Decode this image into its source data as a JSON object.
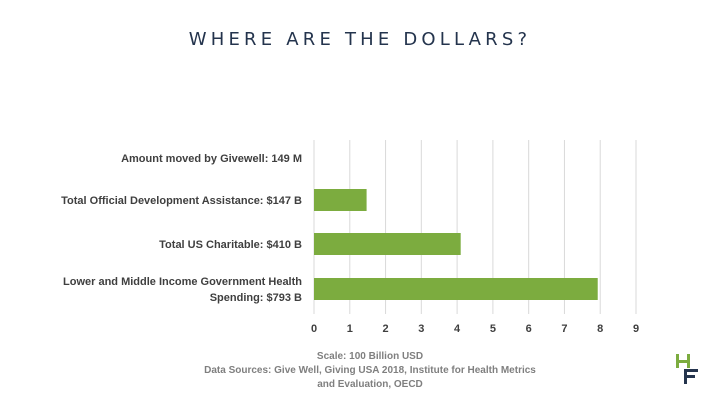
{
  "title": "WHERE ARE THE DOLLARS?",
  "chart_data": {
    "type": "bar",
    "orientation": "horizontal",
    "categories": [
      [
        "Amount moved by Givewell: 149 M"
      ],
      [
        "Total Official Development Assistance: $147 B"
      ],
      [
        "Total US Charitable: $410 B"
      ],
      [
        "Lower and Middle Income Government Health",
        "Spending: $793 B"
      ]
    ],
    "values": [
      0.00149,
      1.47,
      4.1,
      7.93
    ],
    "xlim": [
      0,
      9
    ],
    "xticks": [
      0,
      1,
      2,
      3,
      4,
      5,
      6,
      7,
      8,
      9
    ],
    "grid": "vertical",
    "bar_color": "#7cac3f",
    "grid_color": "#d9d9d9"
  },
  "footer": {
    "scale": "Scale: 100 Billion USD",
    "sources_line1": "Data Sources: Give Well, Giving USA 2018, Institute for Health Metrics",
    "sources_line2": "and Evaluation, OECD"
  },
  "logo": {
    "icon": "hf-logo-icon",
    "green": "#7cac3f",
    "navy": "#24344d"
  }
}
